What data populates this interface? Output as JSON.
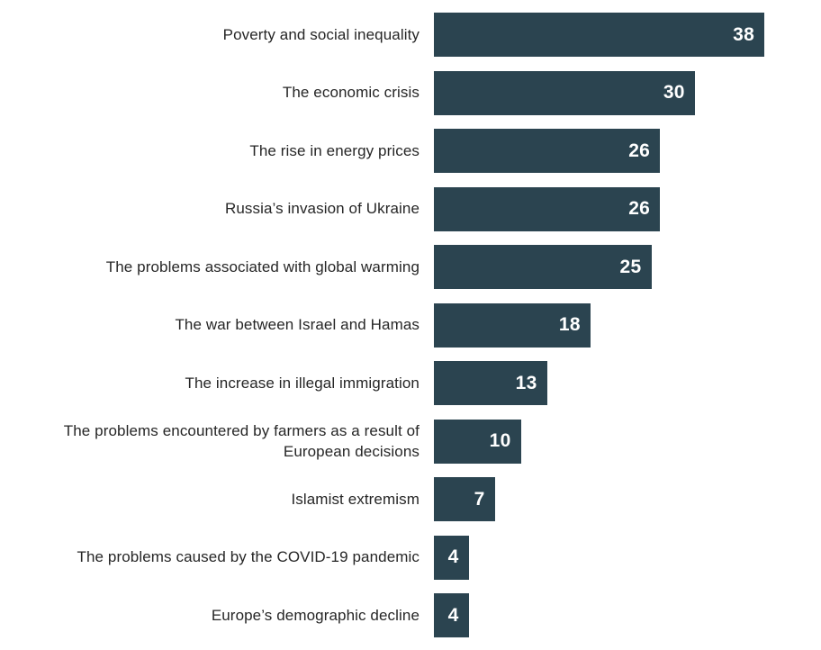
{
  "chart_data": {
    "type": "bar",
    "orientation": "horizontal",
    "title": "",
    "xlabel": "",
    "ylabel": "",
    "grid": false,
    "legend_position": "none",
    "axis_ticks_visible": false,
    "value_labels_position": "inside-end",
    "bar_color": "#2b4450",
    "value_label_color": "#ffffff",
    "category_label_color": "#262626",
    "xlim": [
      0,
      42.8
    ],
    "categories": [
      "Poverty and social inequality",
      "The economic crisis",
      "The rise in energy prices",
      "Russia’s invasion of Ukraine",
      "The problems associated with global warming",
      "The war between Israel and Hamas",
      "The increase in illegal immigration",
      "The problems encountered by farmers as a result of European decisions",
      "Islamist extremism",
      "The problems caused by the COVID-19 pandemic",
      "Europe’s demographic decline"
    ],
    "values": [
      38,
      30,
      26,
      26,
      25,
      18,
      13,
      10,
      7,
      4,
      4
    ]
  }
}
